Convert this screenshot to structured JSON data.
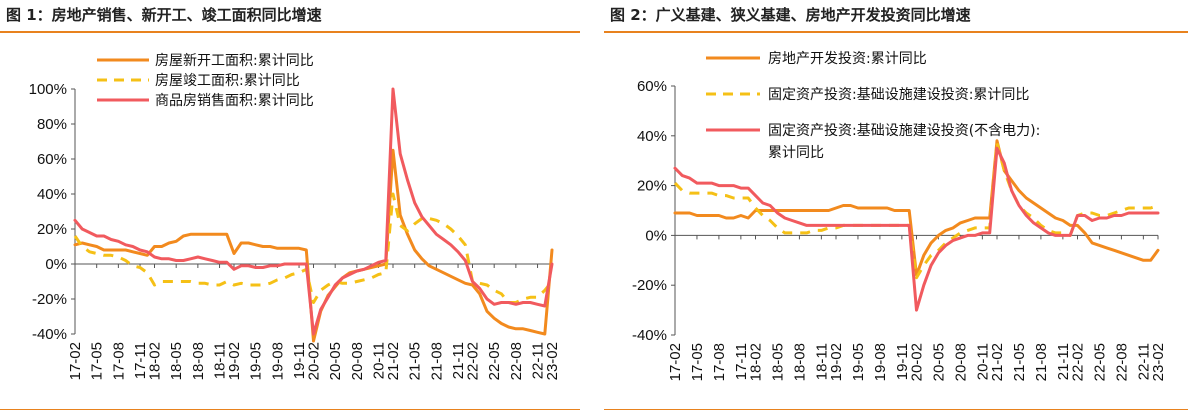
{
  "charts": [
    {
      "title": "图 1：房地产销售、新开工、竣工面积同比增速",
      "chart_data": {
        "type": "line",
        "ylim": [
          -40,
          100
        ],
        "yticks": [
          "100%",
          "80%",
          "60%",
          "40%",
          "20%",
          "0%",
          "-20%",
          "-40%"
        ],
        "yticks_values": [
          100,
          80,
          60,
          40,
          20,
          0,
          -20,
          -40
        ],
        "x": [
          "17-02",
          "17-03",
          "17-04",
          "17-05",
          "17-06",
          "17-07",
          "17-08",
          "17-09",
          "17-10",
          "17-11",
          "17-12",
          "18-02",
          "18-03",
          "18-04",
          "18-05",
          "18-06",
          "18-07",
          "18-08",
          "18-09",
          "18-10",
          "18-11",
          "18-12",
          "19-02",
          "19-03",
          "19-04",
          "19-05",
          "19-06",
          "19-07",
          "19-08",
          "19-09",
          "19-10",
          "19-11",
          "19-12",
          "20-02",
          "20-03",
          "20-04",
          "20-05",
          "20-06",
          "20-07",
          "20-08",
          "20-09",
          "20-10",
          "20-11",
          "20-12",
          "21-02",
          "21-03",
          "21-04",
          "21-05",
          "21-06",
          "21-07",
          "21-08",
          "21-09",
          "21-10",
          "21-11",
          "21-12",
          "22-02",
          "22-03",
          "22-04",
          "22-05",
          "22-06",
          "22-07",
          "22-08",
          "22-09",
          "22-10",
          "22-11",
          "22-12",
          "23-02"
        ],
        "xtick_labels": [
          "17-02",
          "17-05",
          "17-08",
          "17-11",
          "18-02",
          "18-05",
          "18-08",
          "18-11",
          "19-02",
          "19-05",
          "19-08",
          "19-11",
          "20-02",
          "20-05",
          "20-08",
          "20-11",
          "21-02",
          "21-05",
          "21-08",
          "21-11",
          "22-02",
          "22-05",
          "22-08",
          "22-11",
          "23-02"
        ],
        "legend_position": "top-left",
        "series": [
          {
            "name": "房屋新开工面积:累计同比",
            "color": "#F28A1E",
            "style": "solid",
            "values": [
              11,
              12,
              11,
              10,
              8,
              8,
              8,
              8,
              7,
              6,
              5,
              10,
              10,
              12,
              13,
              16,
              17,
              17,
              17,
              17,
              17,
              17,
              6,
              12,
              12,
              11,
              10,
              10,
              9,
              9,
              9,
              9,
              8,
              -44,
              -27,
              -18,
              -13,
              -8,
              -5,
              -4,
              -3,
              -2,
              -1,
              0,
              65,
              28,
              17,
              8,
              3,
              -1,
              -3,
              -5,
              -7,
              -9,
              -11,
              -12,
              -17,
              -27,
              -31,
              -34,
              -36,
              -37,
              -37,
              -38,
              -39,
              -40,
              8
            ]
          },
          {
            "name": "房屋竣工面积:累计同比",
            "color": "#F5C016",
            "style": "dashed",
            "values": [
              16,
              10,
              7,
              6,
              5,
              5,
              4,
              2,
              -1,
              -2,
              -5,
              -12,
              -10,
              -10,
              -10,
              -10,
              -10,
              -11,
              -11,
              -12,
              -12,
              -10,
              -12,
              -11,
              -12,
              -12,
              -12,
              -11,
              -9,
              -8,
              -6,
              -5,
              -3,
              -22,
              -15,
              -12,
              -10,
              -11,
              -11,
              -10,
              -9,
              -8,
              -6,
              -5,
              40,
              22,
              19,
              23,
              26,
              26,
              25,
              23,
              20,
              16,
              11,
              -10,
              -11,
              -12,
              -15,
              -17,
              -22,
              -22,
              -20,
              -19,
              -19,
              -15,
              -10
            ]
          },
          {
            "name": "商品房销售面积:累计同比",
            "color": "#F15A5E",
            "style": "solid",
            "values": [
              25,
              20,
              18,
              16,
              16,
              14,
              13,
              11,
              10,
              8,
              7,
              4,
              3,
              3,
              2,
              2,
              3,
              4,
              3,
              2,
              1,
              1,
              -3,
              -1,
              -1,
              -2,
              -2,
              -1,
              -1,
              0,
              0,
              0,
              0,
              -40,
              -26,
              -19,
              -12,
              -8,
              -6,
              -4,
              -3,
              -1,
              1,
              2,
              100,
              63,
              48,
              35,
              27,
              22,
              17,
              14,
              11,
              7,
              2,
              -10,
              -14,
              -20,
              -23,
              -22,
              -22,
              -23,
              -22,
              -22,
              -23,
              -24,
              0
            ]
          }
        ]
      }
    },
    {
      "title": "图 2：广义基建、狭义基建、房地产开发投资同比增速",
      "chart_data": {
        "type": "line",
        "ylim": [
          -40,
          60
        ],
        "yticks": [
          "60%",
          "40%",
          "20%",
          "0%",
          "-20%",
          "-40%"
        ],
        "yticks_values": [
          60,
          40,
          20,
          0,
          -20,
          -40
        ],
        "x": [
          "17-02",
          "17-03",
          "17-04",
          "17-05",
          "17-06",
          "17-07",
          "17-08",
          "17-09",
          "17-10",
          "17-11",
          "17-12",
          "18-02",
          "18-03",
          "18-04",
          "18-05",
          "18-06",
          "18-07",
          "18-08",
          "18-09",
          "18-10",
          "18-11",
          "18-12",
          "19-02",
          "19-03",
          "19-04",
          "19-05",
          "19-06",
          "19-07",
          "19-08",
          "19-09",
          "19-10",
          "19-11",
          "19-12",
          "20-02",
          "20-03",
          "20-04",
          "20-05",
          "20-06",
          "20-07",
          "20-08",
          "20-09",
          "20-10",
          "20-11",
          "20-12",
          "21-02",
          "21-03",
          "21-04",
          "21-05",
          "21-06",
          "21-07",
          "21-08",
          "21-09",
          "21-10",
          "21-11",
          "21-12",
          "22-02",
          "22-03",
          "22-04",
          "22-05",
          "22-06",
          "22-07",
          "22-08",
          "22-09",
          "22-10",
          "22-11",
          "22-12",
          "23-02"
        ],
        "xtick_labels": [
          "17-02",
          "17-05",
          "17-08",
          "17-11",
          "18-02",
          "18-05",
          "18-08",
          "18-11",
          "19-02",
          "19-05",
          "19-08",
          "19-11",
          "20-02",
          "20-05",
          "20-08",
          "20-11",
          "21-02",
          "21-05",
          "21-08",
          "21-11",
          "22-02",
          "22-05",
          "22-08",
          "22-11",
          "23-02"
        ],
        "legend_position": "top-left",
        "series": [
          {
            "name": "房地产开发投资:累计同比",
            "color": "#F28A1E",
            "style": "solid",
            "values": [
              9,
              9,
              9,
              8,
              8,
              8,
              8,
              7,
              7,
              8,
              7,
              10,
              10,
              10,
              10,
              10,
              10,
              10,
              10,
              10,
              10,
              10,
              11,
              12,
              12,
              11,
              11,
              11,
              11,
              11,
              10,
              10,
              10,
              -16,
              -8,
              -3,
              0,
              2,
              3,
              5,
              6,
              7,
              7,
              7,
              38,
              26,
              22,
              18,
              15,
              13,
              11,
              9,
              7,
              6,
              4,
              4,
              1,
              -3,
              -4,
              -5,
              -6,
              -7,
              -8,
              -9,
              -10,
              -10,
              -6
            ]
          },
          {
            "name": "固定资产投资:基础设施建设投资:累计同比",
            "color": "#F5C016",
            "style": "dashed",
            "values": [
              21,
              18,
              17,
              17,
              17,
              17,
              16,
              16,
              15,
              15,
              15,
              11,
              8,
              6,
              3,
              1,
              1,
              1,
              1,
              2,
              2,
              3,
              3,
              4,
              4,
              4,
              4,
              4,
              4,
              4,
              4,
              4,
              4,
              -17,
              -12,
              -8,
              -6,
              -3,
              -1,
              1,
              2,
              3,
              3,
              3,
              37,
              26,
              18,
              12,
              9,
              7,
              4,
              2,
              1,
              1,
              0,
              8,
              9,
              9,
              8,
              8,
              9,
              10,
              11,
              11,
              11,
              11,
              12
            ]
          },
          {
            "name": "固定资产投资:基础设施建设投资(不含电力):累计同比",
            "color": "#F15A5E",
            "style": "solid",
            "values": [
              27,
              24,
              23,
              21,
              21,
              21,
              20,
              20,
              20,
              19,
              19,
              16,
              13,
              12,
              9,
              7,
              6,
              5,
              4,
              4,
              4,
              4,
              4,
              4,
              4,
              4,
              4,
              4,
              4,
              4,
              4,
              4,
              4,
              -30,
              -20,
              -12,
              -7,
              -4,
              -2,
              -1,
              0,
              0,
              1,
              1,
              35,
              29,
              18,
              12,
              8,
              5,
              3,
              1,
              0,
              0,
              0,
              8,
              8,
              6,
              7,
              7,
              8,
              8,
              9,
              9,
              9,
              9,
              9
            ]
          }
        ]
      }
    }
  ]
}
